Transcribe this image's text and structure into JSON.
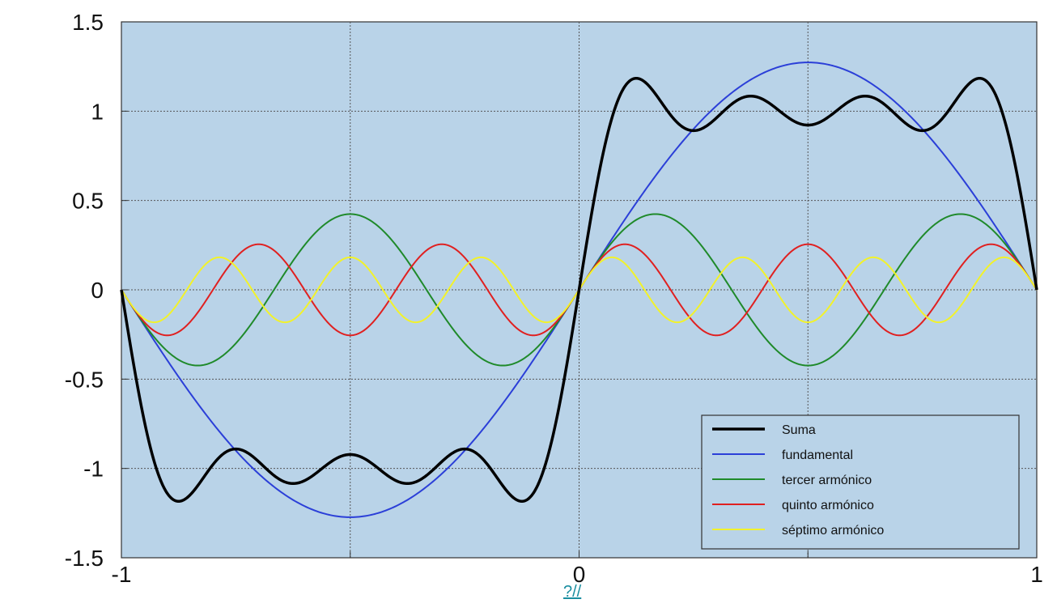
{
  "chart_data": {
    "type": "line",
    "title": "",
    "xlabel": "",
    "ylabel": "",
    "xlim": [
      -1,
      1
    ],
    "ylim": [
      -1.5,
      1.5
    ],
    "x_ticks": [
      -1,
      -0.5,
      0,
      0.5,
      1
    ],
    "x_tick_labels": [
      "-1",
      "",
      "0",
      "",
      "1"
    ],
    "y_ticks": [
      1.5,
      1,
      0.5,
      0,
      -0.5,
      -1,
      -1.5
    ],
    "y_tick_labels": [
      "1.5",
      "1",
      "0.5",
      "0",
      "-0.5",
      "-1",
      "-1.5"
    ],
    "grid": true,
    "legend_position": "bottom-right",
    "background": "#b9d3e8",
    "series": [
      {
        "name": "Suma",
        "color": "#000000",
        "harmonics": [
          1,
          3,
          5,
          7
        ],
        "amplitudes": [
          1.273,
          0.424,
          0.255,
          0.182
        ]
      },
      {
        "name": "fundamental",
        "color": "#2b3fd8",
        "harmonics": [
          1
        ],
        "amplitudes": [
          1.273
        ]
      },
      {
        "name": "tercer armónico",
        "color": "#1f8a2a",
        "harmonics": [
          3
        ],
        "amplitudes": [
          0.424
        ]
      },
      {
        "name": "quinto armónico",
        "color": "#e02020",
        "harmonics": [
          5
        ],
        "amplitudes": [
          0.255
        ]
      },
      {
        "name": "séptimo armónico",
        "color": "#f2f22a",
        "harmonics": [
          7
        ],
        "amplitudes": [
          0.182
        ]
      }
    ]
  },
  "caption_link": "?//"
}
